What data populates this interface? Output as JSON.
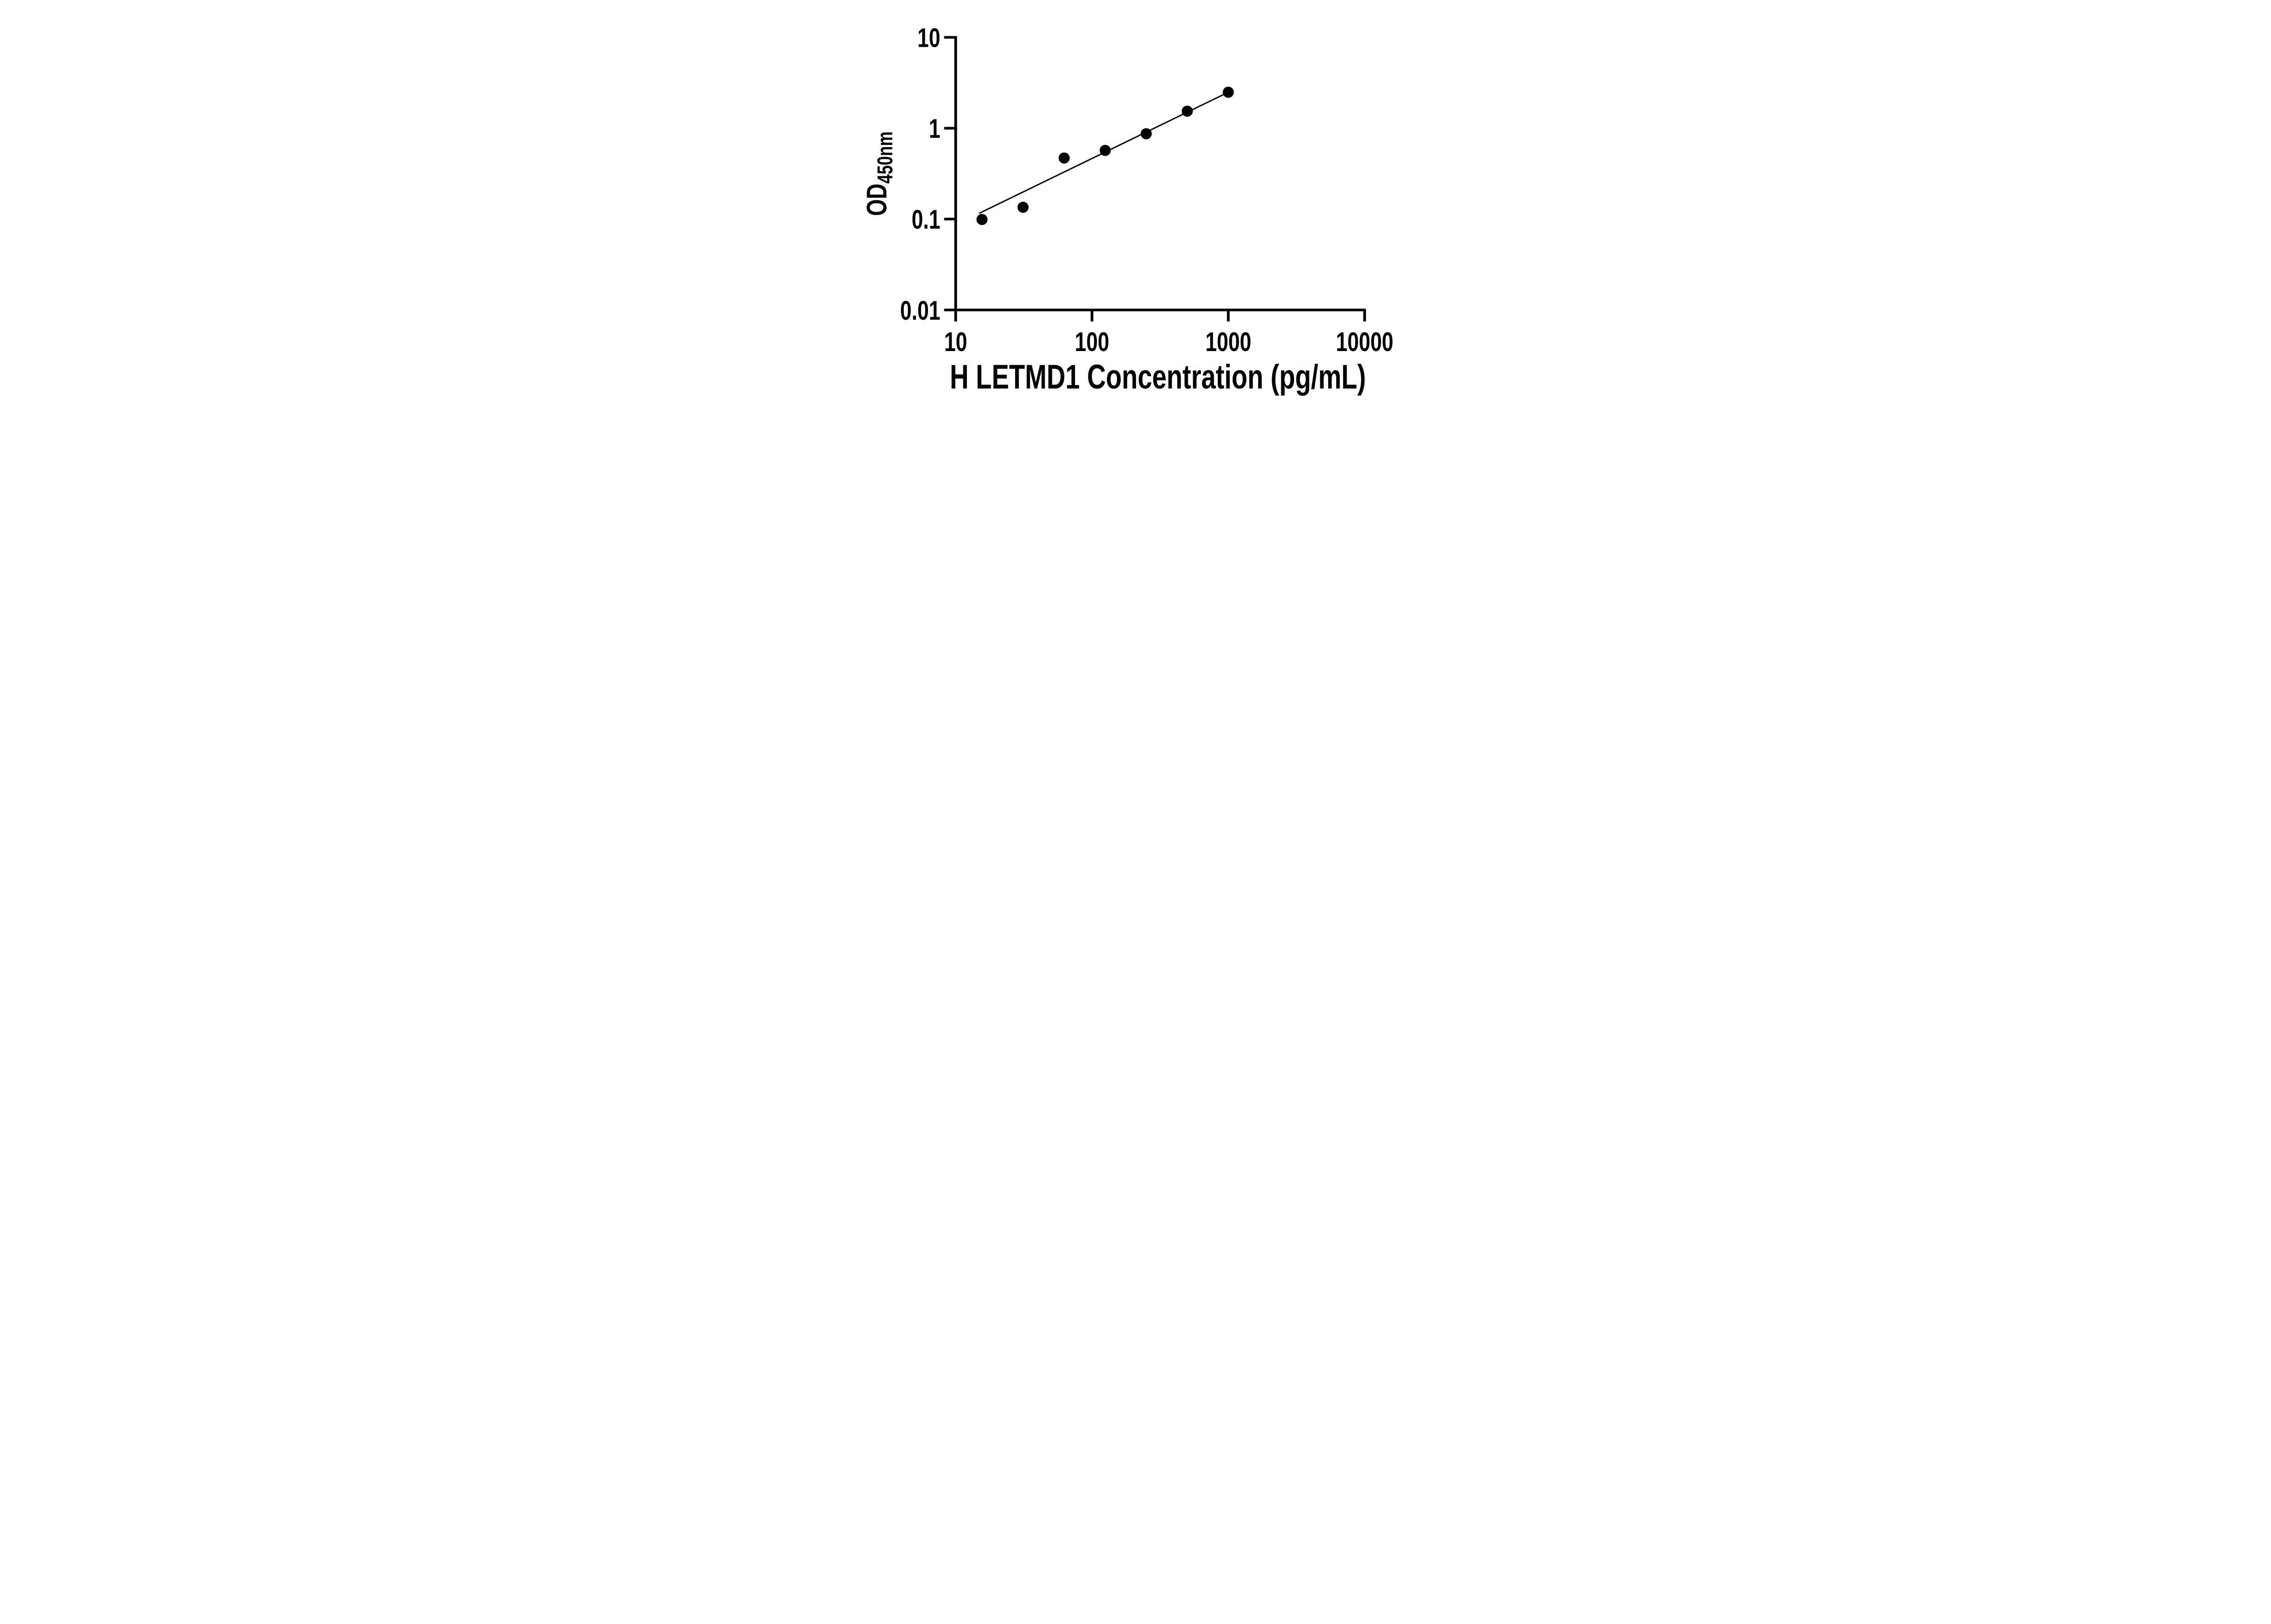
{
  "figure": {
    "background_color": "#ffffff",
    "ink_color": "#000000",
    "description": "ELISA standard curve scatter plot with power-law fit line on log-log axes"
  },
  "chart_data": {
    "type": "scatter",
    "title": "",
    "xlabel": "H LETMD1 Concentration (pg/mL)",
    "ylabel": "OD",
    "ylabel_subscript": "450nm",
    "x_scale": "log10",
    "y_scale": "log10",
    "xlim": [
      10,
      10000
    ],
    "ylim": [
      0.01,
      10
    ],
    "grid": false,
    "legend": "none",
    "x_ticks": [
      10,
      100,
      1000,
      10000
    ],
    "x_tick_labels": [
      "10",
      "100",
      "1000",
      "10000"
    ],
    "y_ticks": [
      10,
      1,
      0.1,
      0.01
    ],
    "y_tick_labels": [
      "10",
      "1",
      "0.1",
      "0.01"
    ],
    "series": [
      {
        "name": "fit-line",
        "type": "line",
        "color": "#000000",
        "x": [
          15.0,
          1000
        ],
        "y": [
          0.1165,
          2.49
        ]
      },
      {
        "name": "standard-points",
        "type": "scatter",
        "marker": "filled-circle",
        "color": "#000000",
        "x": [
          15.6,
          31.2,
          62.5,
          125,
          250,
          500,
          1000
        ],
        "y": [
          0.099,
          0.135,
          0.47,
          0.57,
          0.87,
          1.54,
          2.49
        ]
      }
    ]
  }
}
